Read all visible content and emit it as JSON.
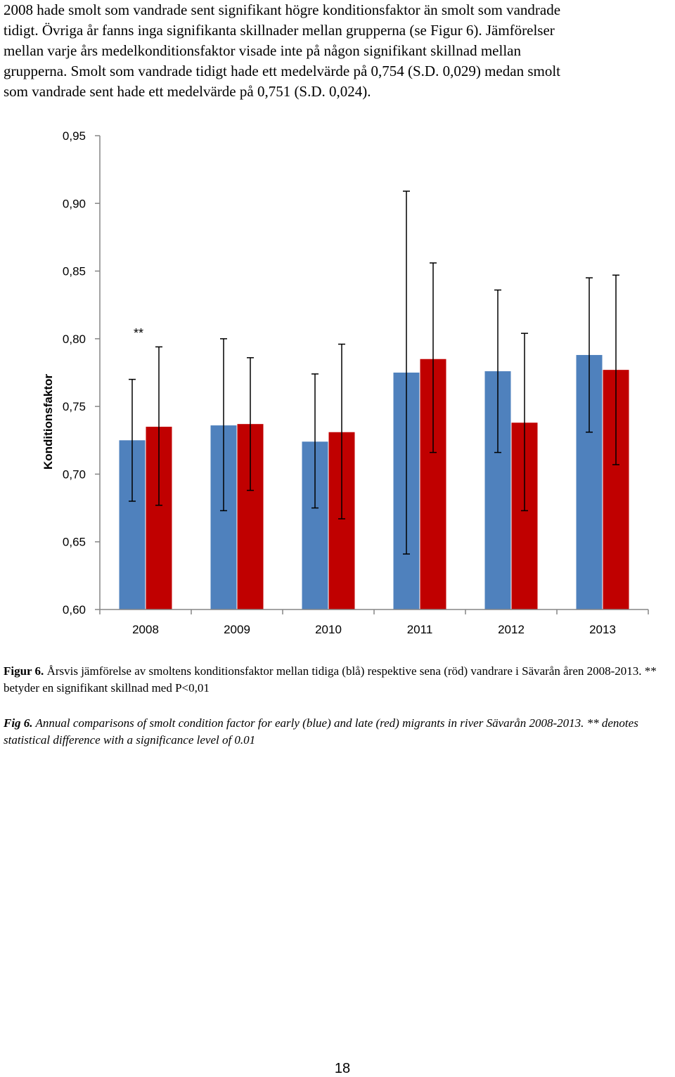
{
  "intro": {
    "lines": [
      "2008 hade smolt som vandrade sent signifikant högre konditionsfaktor än smolt som vandrade",
      "tidigt. Övriga år fanns inga signifikanta skillnader mellan grupperna (se Figur 6). Jämförelser",
      "mellan varje års medelkonditionsfaktor visade inte på någon signifikant skillnad mellan",
      "grupperna. Smolt som vandrade tidigt hade ett medelvärde på 0,754 (S.D. 0,029) medan smolt",
      "som vandrade sent hade ett medelvärde på 0,751 (S.D. 0,024)."
    ]
  },
  "chart_data": {
    "type": "bar",
    "ylabel": "Konditionsfaktor",
    "xlabel": "",
    "ylim": [
      0.6,
      0.95
    ],
    "yticks": [
      "0,95",
      "0,90",
      "0,85",
      "0,80",
      "0,75",
      "0,70",
      "0,65",
      "0,60"
    ],
    "ytick_values": [
      0.95,
      0.9,
      0.85,
      0.8,
      0.75,
      0.7,
      0.65,
      0.6
    ],
    "categories": [
      "2008",
      "2009",
      "2010",
      "2011",
      "2012",
      "2013"
    ],
    "series": [
      {
        "color": "#4f81bd",
        "values": [
          0.725,
          0.736,
          0.724,
          0.775,
          0.776,
          0.788
        ],
        "err_high": [
          0.77,
          0.8,
          0.774,
          0.909,
          0.836,
          0.845
        ],
        "err_low": [
          0.68,
          0.673,
          0.675,
          0.641,
          0.716,
          0.731
        ]
      },
      {
        "color": "#c00000",
        "values": [
          0.735,
          0.737,
          0.731,
          0.785,
          0.738,
          0.777
        ],
        "err_high": [
          0.794,
          0.786,
          0.796,
          0.856,
          0.804,
          0.847
        ],
        "err_low": [
          0.677,
          0.688,
          0.667,
          0.716,
          0.673,
          0.707
        ]
      }
    ],
    "annotations": [
      {
        "text": "**",
        "category": "2008"
      }
    ],
    "grid": false,
    "legend": "none"
  },
  "captions": {
    "sv_label": "Figur 6.",
    "sv_text": " Årsvis jämförelse av smoltens konditionsfaktor mellan tidiga (blå) respektive sena (röd) vandrare i Sävarån åren 2008-2013. ** betyder en signifikant skillnad med P<0,01",
    "en_label": "Fig 6.",
    "en_text": " Annual comparisons of  smolt condition factor for early (blue) and late (red) migrants in river Sävarån 2008-2013. ** denotes statistical difference with a significance level of 0.01"
  },
  "page_number": "18"
}
